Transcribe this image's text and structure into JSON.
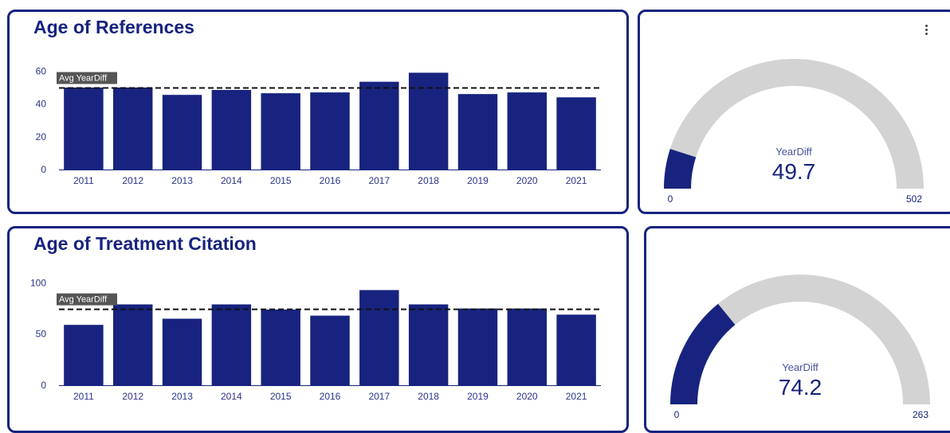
{
  "colors": {
    "bar": "#17237e",
    "track": "#d3d3d3",
    "avg_line": "#111111",
    "axis_text": "#2b3489"
  },
  "chart_data": [
    {
      "type": "bar",
      "title": "Age of References",
      "categories": [
        "2011",
        "2012",
        "2013",
        "2014",
        "2015",
        "2016",
        "2017",
        "2018",
        "2019",
        "2020",
        "2021"
      ],
      "values": [
        50,
        50,
        45.5,
        48.5,
        46.5,
        47,
        53.5,
        59,
        46,
        47,
        44
      ],
      "ylim": [
        0,
        65
      ],
      "yticks": [
        0,
        20,
        40,
        60
      ],
      "reference_line": {
        "label": "Avg YearDiff",
        "value": 49.7
      }
    },
    {
      "type": "bar",
      "title": "Age of Treatment Citation",
      "categories": [
        "2011",
        "2012",
        "2013",
        "2014",
        "2015",
        "2016",
        "2017",
        "2018",
        "2019",
        "2020",
        "2021"
      ],
      "values": [
        59,
        79,
        65,
        79,
        74,
        68,
        93,
        79,
        75,
        75,
        69
      ],
      "ylim": [
        0,
        105
      ],
      "yticks": [
        0,
        50,
        100
      ],
      "reference_line": {
        "label": "Avg YearDiff",
        "value": 74.2
      }
    }
  ],
  "gauges": [
    {
      "label": "YearDiff",
      "value": 49.7,
      "value_text": "49.7",
      "min": 0,
      "max": 502,
      "min_text": "0",
      "max_text": "502"
    },
    {
      "label": "YearDiff",
      "value": 74.2,
      "value_text": "74.2",
      "min": 0,
      "max": 263,
      "min_text": "0",
      "max_text": "263"
    }
  ]
}
